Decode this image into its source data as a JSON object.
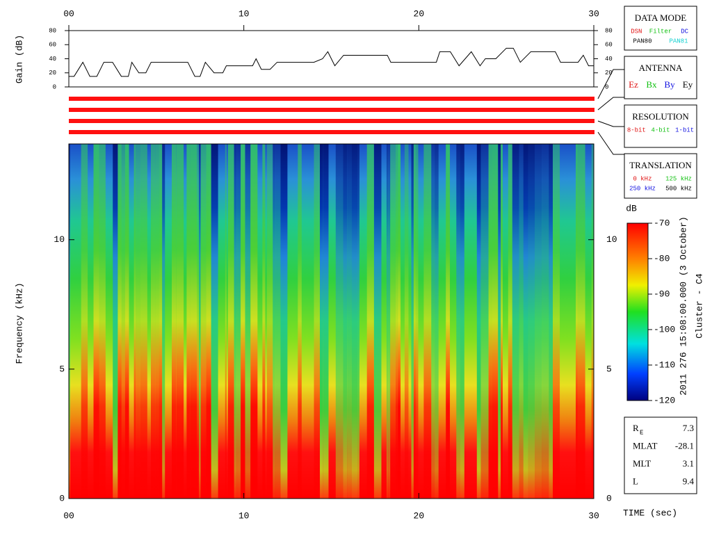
{
  "chart_data": [
    {
      "type": "line",
      "ylabel": "Gain (dB)",
      "color": "#000000",
      "x": [
        0,
        0.3,
        0.8,
        1.2,
        1.6,
        2.0,
        2.5,
        3.0,
        3.4,
        3.6,
        4.0,
        4.4,
        4.7,
        6.8,
        7.2,
        7.5,
        7.8,
        8.3,
        8.8,
        9.0,
        10.5,
        10.7,
        11.0,
        11.5,
        11.9,
        14.0,
        14.5,
        14.8,
        15.2,
        15.7,
        18.2,
        18.4,
        21.0,
        21.2,
        21.8,
        22.3,
        23.0,
        23.5,
        23.8,
        24.4,
        25.0,
        25.4,
        25.8,
        26.4,
        27.8,
        28.1,
        29.1,
        29.4,
        29.7,
        30
      ],
      "values": [
        15,
        15,
        35,
        15,
        15,
        35,
        35,
        15,
        15,
        35,
        20,
        20,
        35,
        35,
        15,
        15,
        35,
        20,
        20,
        30,
        30,
        40,
        25,
        25,
        35,
        35,
        40,
        50,
        30,
        45,
        45,
        35,
        35,
        50,
        50,
        30,
        50,
        30,
        40,
        40,
        55,
        55,
        35,
        50,
        50,
        35,
        35,
        45,
        30,
        30
      ],
      "xlim": [
        0,
        30
      ],
      "xticks": [
        {
          "value": 0,
          "label": "00"
        },
        10,
        20,
        30
      ],
      "ylim": [
        0,
        80
      ],
      "yticks": [
        0,
        20,
        40,
        60,
        80
      ]
    },
    {
      "type": "spectrogram",
      "xlabel": "TIME (sec)",
      "ylabel": "Frequency (kHz)",
      "xlim": [
        0,
        30
      ],
      "xticks": [
        {
          "value": 0,
          "label": "00"
        },
        10,
        20,
        30
      ],
      "ylim": [
        0,
        13.7
      ],
      "yticks": [
        0,
        5,
        10
      ]
    },
    {
      "type": "colorbar",
      "title": "dB",
      "ylim": [
        -120,
        -70
      ],
      "yticks": [
        -70,
        -80,
        -90,
        -100,
        -110,
        -120
      ]
    }
  ],
  "side_label": [
    "2011 276 15:08:00.000 (3 October)",
    "Cluster - C4"
  ],
  "legend_boxes": [
    {
      "title": "DATA MODE",
      "rows": [
        [
          {
            "text": "DSN",
            "color": "#e01010"
          },
          {
            "text": "Filter",
            "color": "#10c010"
          },
          {
            "text": "DC",
            "color": "#1010e0"
          }
        ],
        [
          {
            "text": "PAN80",
            "color": "#000000"
          },
          {
            "text": "PAN81",
            "color": "#10d0d0"
          }
        ]
      ]
    },
    {
      "title": "ANTENNA",
      "rows": [
        [
          {
            "text": "Ez",
            "color": "#e01010"
          },
          {
            "text": "Bx",
            "color": "#10c010"
          },
          {
            "text": "By",
            "color": "#1010e0"
          },
          {
            "text": "Ey",
            "color": "#000000"
          }
        ]
      ]
    },
    {
      "title": "RESOLUTION",
      "rows": [
        [
          {
            "text": "8-bit",
            "color": "#e01010"
          },
          {
            "text": "4-bit",
            "color": "#10c010"
          },
          {
            "text": "1-bit",
            "color": "#1010e0"
          }
        ]
      ]
    },
    {
      "title": "TRANSLATION",
      "rows": [
        [
          {
            "text": "0 kHz",
            "color": "#e01010"
          },
          {
            "text": "125 kHz",
            "color": "#10c010"
          }
        ],
        [
          {
            "text": "250 kHz",
            "color": "#1010e0"
          },
          {
            "text": "500 kHz",
            "color": "#000000"
          }
        ]
      ]
    }
  ],
  "ephemeris": [
    {
      "label": "R",
      "sub": "E",
      "value": 7.3
    },
    {
      "label": "MLAT",
      "value": -28.1
    },
    {
      "label": "MLT",
      "value": 3.1
    },
    {
      "label": "L",
      "value": 9.4
    }
  ]
}
